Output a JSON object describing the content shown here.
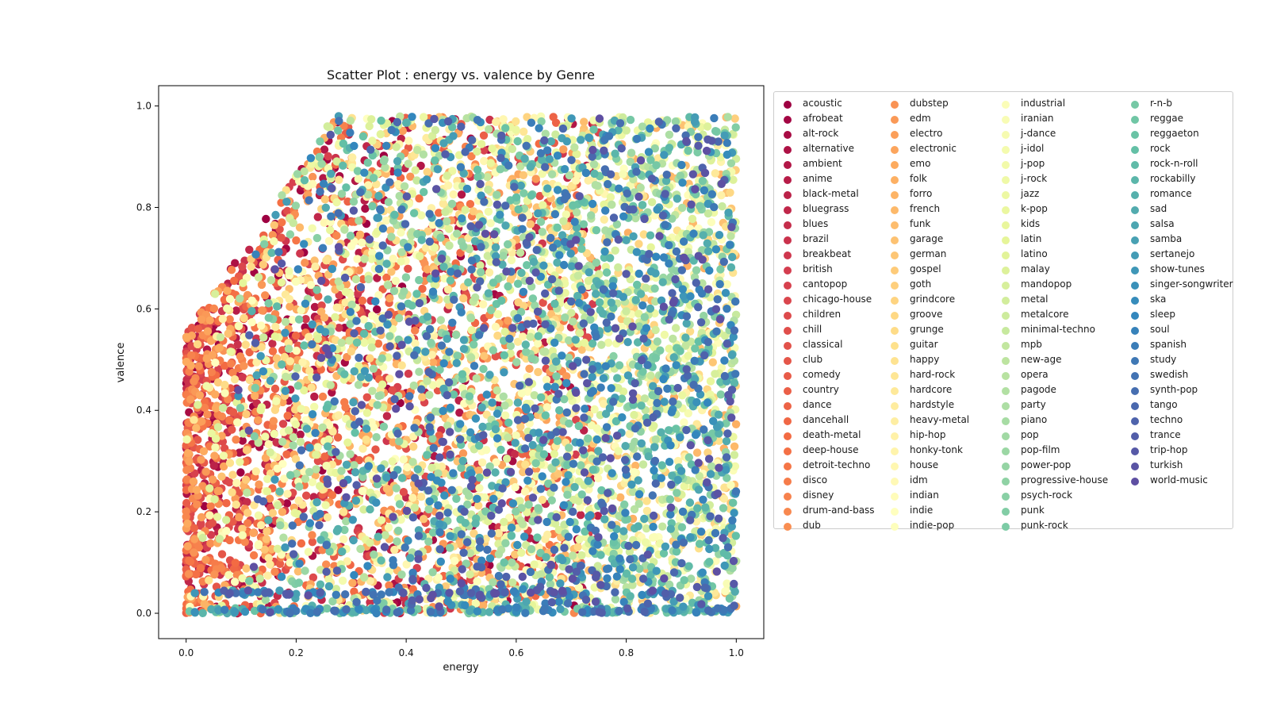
{
  "chart_data": {
    "type": "scatter",
    "title": "Scatter Plot : energy vs. valence by Genre",
    "xlabel": "energy",
    "ylabel": "valence",
    "xlim": [
      -0.05,
      1.05
    ],
    "ylim": [
      -0.05,
      1.04
    ],
    "xticks": [
      "0.0",
      "0.2",
      "0.4",
      "0.6",
      "0.8",
      "1.0"
    ],
    "yticks": [
      "0.0",
      "0.2",
      "0.4",
      "0.6",
      "0.8",
      "1.0"
    ],
    "colormap": "Spectral",
    "grid": false,
    "legend_placement": "outside right, 4 columns",
    "series": [
      {
        "name": "acoustic"
      },
      {
        "name": "afrobeat"
      },
      {
        "name": "alt-rock"
      },
      {
        "name": "alternative"
      },
      {
        "name": "ambient"
      },
      {
        "name": "anime"
      },
      {
        "name": "black-metal"
      },
      {
        "name": "bluegrass"
      },
      {
        "name": "blues"
      },
      {
        "name": "brazil"
      },
      {
        "name": "breakbeat"
      },
      {
        "name": "british"
      },
      {
        "name": "cantopop"
      },
      {
        "name": "chicago-house"
      },
      {
        "name": "children"
      },
      {
        "name": "chill"
      },
      {
        "name": "classical"
      },
      {
        "name": "club"
      },
      {
        "name": "comedy"
      },
      {
        "name": "country"
      },
      {
        "name": "dance"
      },
      {
        "name": "dancehall"
      },
      {
        "name": "death-metal"
      },
      {
        "name": "deep-house"
      },
      {
        "name": "detroit-techno"
      },
      {
        "name": "disco"
      },
      {
        "name": "disney"
      },
      {
        "name": "drum-and-bass"
      },
      {
        "name": "dub"
      },
      {
        "name": "dubstep"
      },
      {
        "name": "edm"
      },
      {
        "name": "electro"
      },
      {
        "name": "electronic"
      },
      {
        "name": "emo"
      },
      {
        "name": "folk"
      },
      {
        "name": "forro"
      },
      {
        "name": "french"
      },
      {
        "name": "funk"
      },
      {
        "name": "garage"
      },
      {
        "name": "german"
      },
      {
        "name": "gospel"
      },
      {
        "name": "goth"
      },
      {
        "name": "grindcore"
      },
      {
        "name": "groove"
      },
      {
        "name": "grunge"
      },
      {
        "name": "guitar"
      },
      {
        "name": "happy"
      },
      {
        "name": "hard-rock"
      },
      {
        "name": "hardcore"
      },
      {
        "name": "hardstyle"
      },
      {
        "name": "heavy-metal"
      },
      {
        "name": "hip-hop"
      },
      {
        "name": "honky-tonk"
      },
      {
        "name": "house"
      },
      {
        "name": "idm"
      },
      {
        "name": "indian"
      },
      {
        "name": "indie"
      },
      {
        "name": "indie-pop"
      },
      {
        "name": "industrial"
      },
      {
        "name": "iranian"
      },
      {
        "name": "j-dance"
      },
      {
        "name": "j-idol"
      },
      {
        "name": "j-pop"
      },
      {
        "name": "j-rock"
      },
      {
        "name": "jazz"
      },
      {
        "name": "k-pop"
      },
      {
        "name": "kids"
      },
      {
        "name": "latin"
      },
      {
        "name": "latino"
      },
      {
        "name": "malay"
      },
      {
        "name": "mandopop"
      },
      {
        "name": "metal"
      },
      {
        "name": "metalcore"
      },
      {
        "name": "minimal-techno"
      },
      {
        "name": "mpb"
      },
      {
        "name": "new-age"
      },
      {
        "name": "opera"
      },
      {
        "name": "pagode"
      },
      {
        "name": "party"
      },
      {
        "name": "piano"
      },
      {
        "name": "pop"
      },
      {
        "name": "pop-film"
      },
      {
        "name": "power-pop"
      },
      {
        "name": "progressive-house"
      },
      {
        "name": "psych-rock"
      },
      {
        "name": "punk"
      },
      {
        "name": "punk-rock"
      },
      {
        "name": "r-n-b"
      },
      {
        "name": "reggae"
      },
      {
        "name": "reggaeton"
      },
      {
        "name": "rock"
      },
      {
        "name": "rock-n-roll"
      },
      {
        "name": "rockabilly"
      },
      {
        "name": "romance"
      },
      {
        "name": "sad"
      },
      {
        "name": "salsa"
      },
      {
        "name": "samba"
      },
      {
        "name": "sertanejo"
      },
      {
        "name": "show-tunes"
      },
      {
        "name": "singer-songwriter"
      },
      {
        "name": "ska"
      },
      {
        "name": "sleep"
      },
      {
        "name": "soul"
      },
      {
        "name": "spanish"
      },
      {
        "name": "study"
      },
      {
        "name": "swedish"
      },
      {
        "name": "synth-pop"
      },
      {
        "name": "tango"
      },
      {
        "name": "techno"
      },
      {
        "name": "trance"
      },
      {
        "name": "trip-hop"
      },
      {
        "name": "turkish"
      },
      {
        "name": "world-music"
      }
    ]
  }
}
